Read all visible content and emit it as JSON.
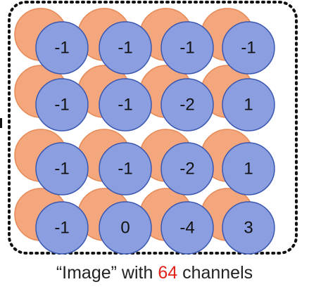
{
  "grid": {
    "rows": [
      [
        "-1",
        "-1",
        "-1",
        "-1"
      ],
      [
        "-1",
        "-1",
        "-2",
        "1"
      ],
      [
        "-1",
        "-1",
        "-2",
        "1"
      ],
      [
        "-1",
        "0",
        "-4",
        "3"
      ]
    ]
  },
  "caption": {
    "before": "“Image” with ",
    "number": "64",
    "after": " channels"
  },
  "colors": {
    "front_circle_fill": "#8b9fe0",
    "front_circle_stroke": "#3a57b0",
    "back_circle_fill": "#f4a77c",
    "back_circle_stroke": "#e68a57",
    "border": "#111111",
    "highlight": "#e2231a"
  }
}
